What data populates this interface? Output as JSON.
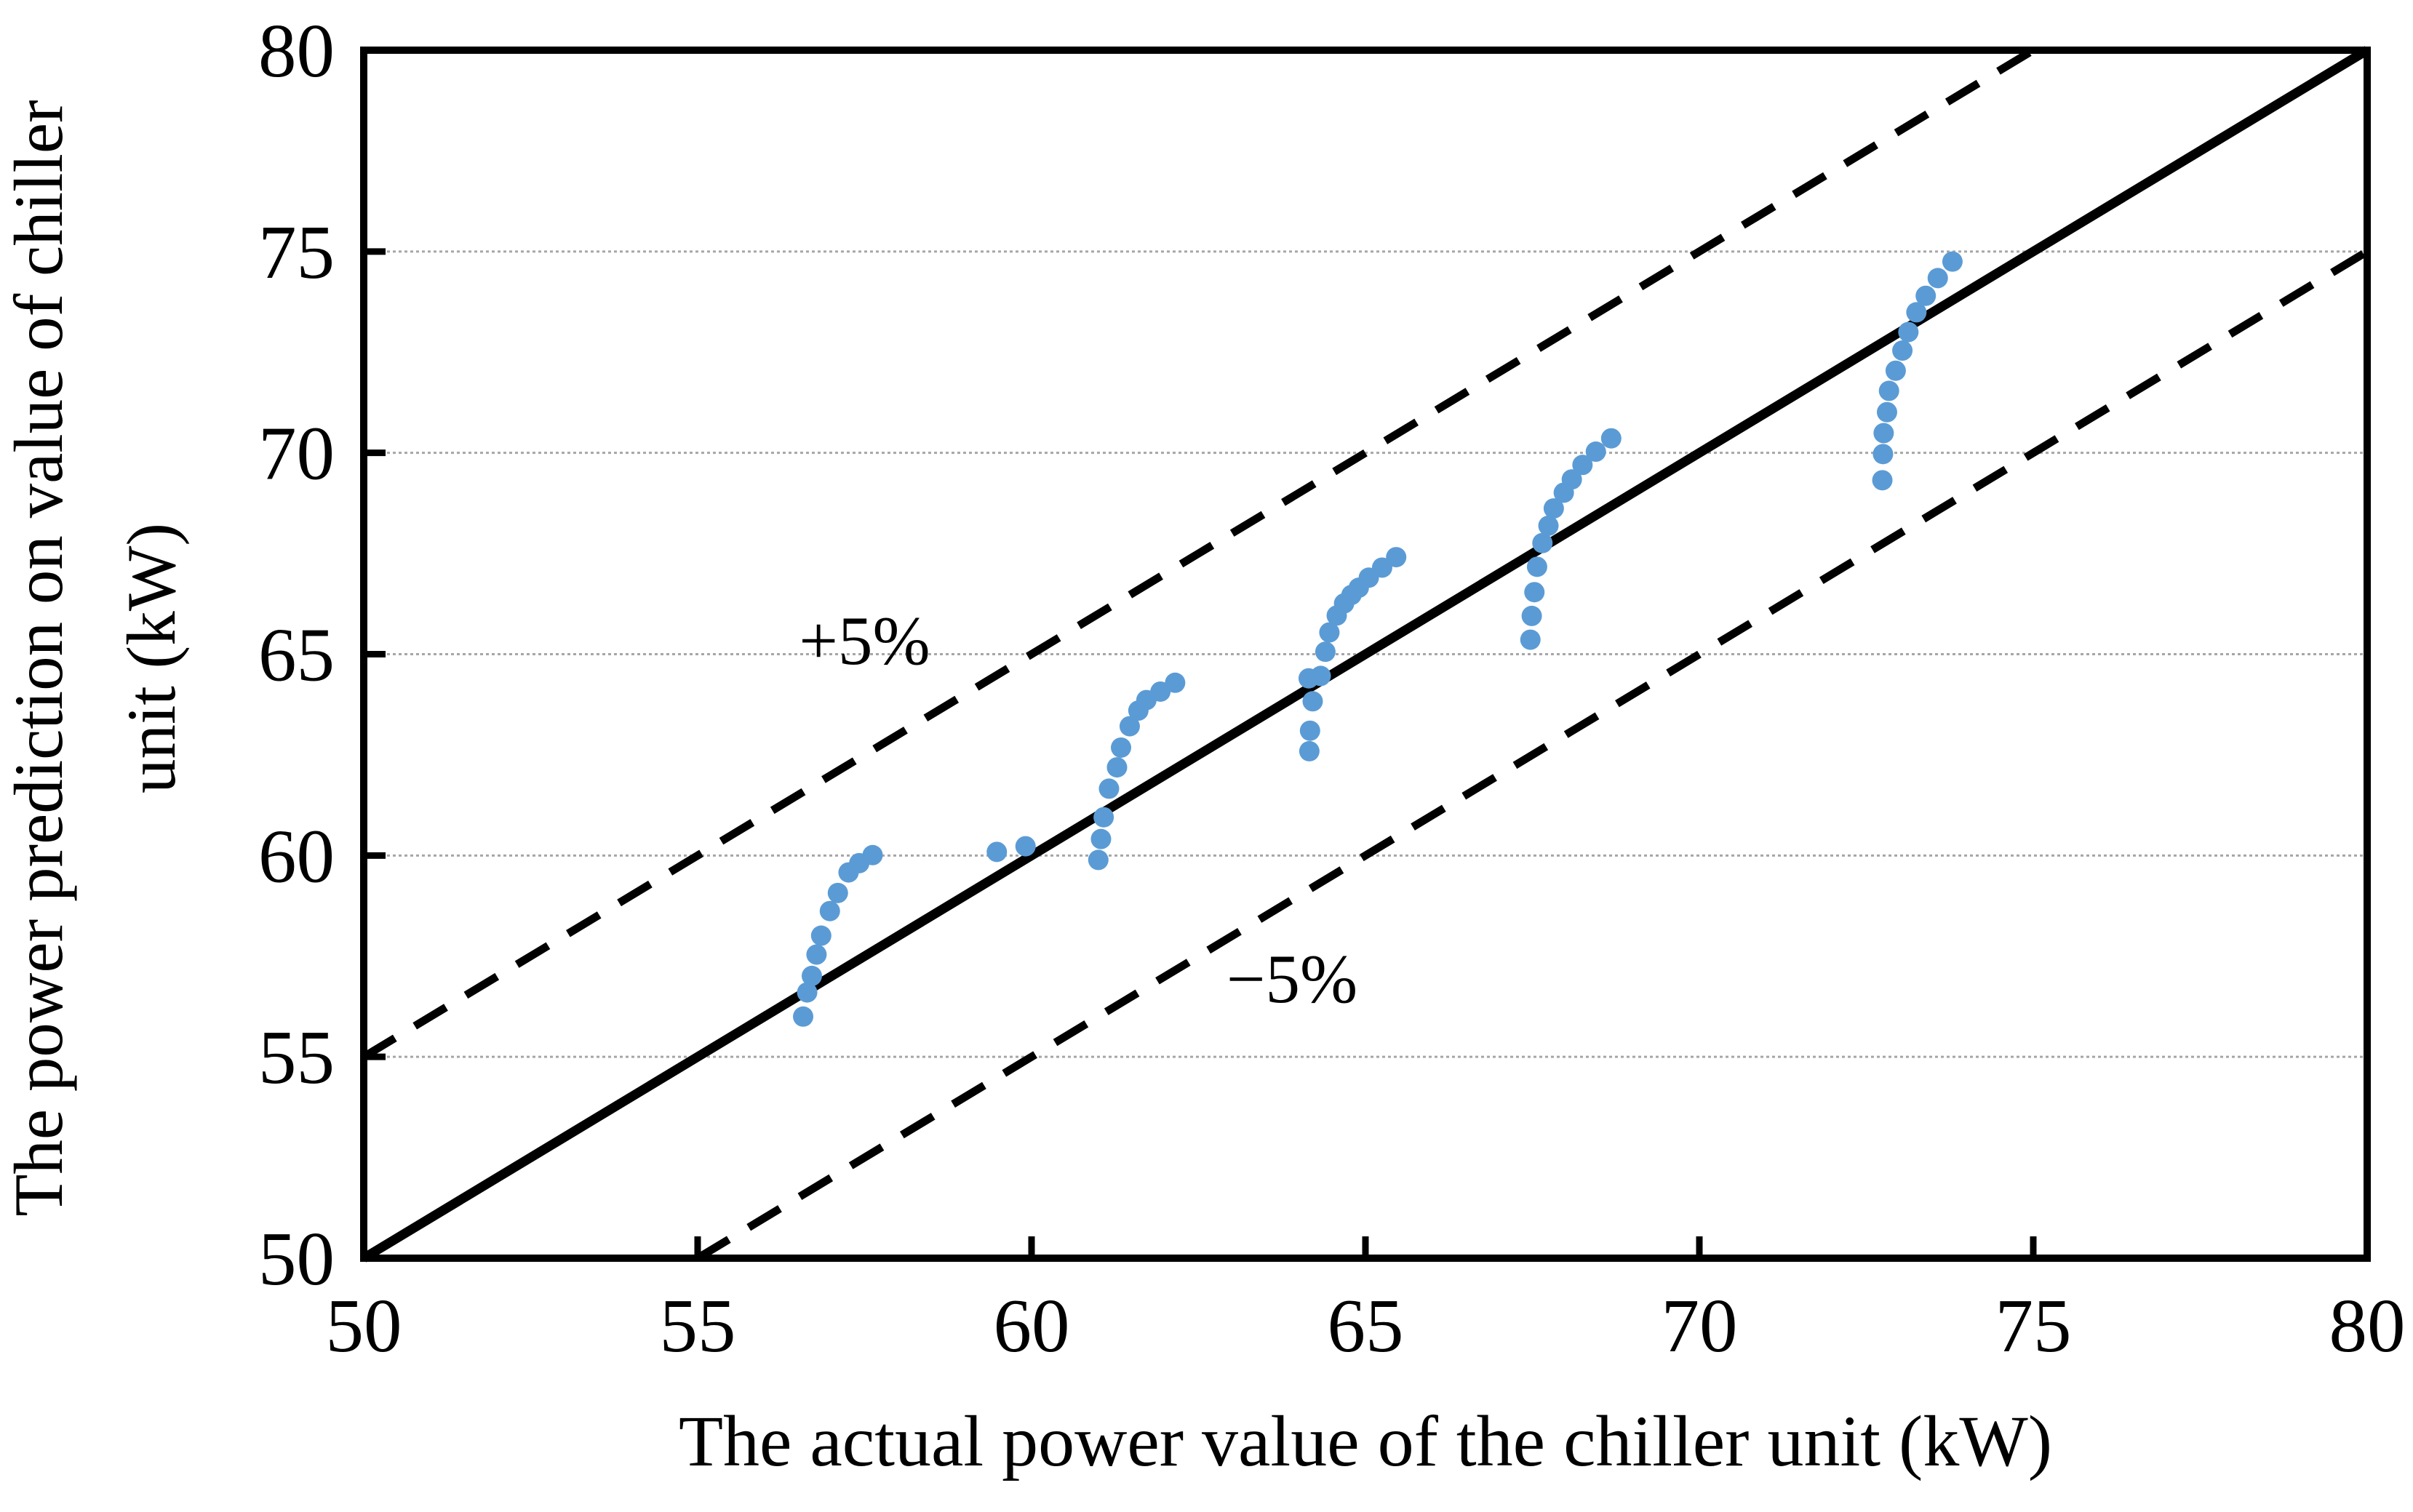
{
  "figure": {
    "background": "#ffffff"
  },
  "chart_data": {
    "type": "scatter",
    "title": "",
    "xlabel": "The actual power value of the chiller unit（kW）",
    "ylabel_lines": [
      "The power prediction on value of chiller",
      "unit（kW）"
    ],
    "xlim": [
      50,
      80
    ],
    "ylim": [
      50,
      80
    ],
    "xticks": [
      50,
      55,
      60,
      65,
      70,
      75,
      80
    ],
    "yticks": [
      50,
      55,
      60,
      65,
      70,
      75,
      80
    ],
    "gridlines": {
      "horizontal": [
        55,
        60,
        65,
        70,
        75
      ],
      "vertical": [],
      "color": "#a6a6a6"
    },
    "legend": "none",
    "marker": {
      "shape": "circle",
      "color": "#5B9BD5"
    },
    "reference_lines": [
      {
        "id": "identity",
        "label": "",
        "from": [
          50,
          50
        ],
        "to": [
          80,
          80
        ],
        "style": "solid",
        "color": "#000000"
      },
      {
        "id": "plus5",
        "label": "+5%",
        "from": [
          50,
          55
        ],
        "to": [
          75,
          80
        ],
        "style": "dashed",
        "color": "#000000",
        "label_at": [
          57.5,
          65.35
        ]
      },
      {
        "id": "minus5",
        "label": "−5%",
        "from": [
          55,
          50
        ],
        "to": [
          80,
          75
        ],
        "style": "dashed",
        "color": "#000000",
        "label_at": [
          63.9,
          56.95
        ]
      }
    ],
    "series": [
      {
        "name": "chiller-power-prediction-points",
        "color": "#5B9BD5",
        "points": [
          [
            56.58,
            56.0
          ],
          [
            56.64,
            56.6
          ],
          [
            56.71,
            57.01
          ],
          [
            56.78,
            57.54
          ],
          [
            56.85,
            58.01
          ],
          [
            56.98,
            58.62
          ],
          [
            57.1,
            59.07
          ],
          [
            57.26,
            59.58
          ],
          [
            57.42,
            59.81
          ],
          [
            57.62,
            60.01
          ],
          [
            59.48,
            60.09
          ],
          [
            59.91,
            60.23
          ],
          [
            61.0,
            59.89
          ],
          [
            61.04,
            60.41
          ],
          [
            61.08,
            60.95
          ],
          [
            61.16,
            61.66
          ],
          [
            61.28,
            62.19
          ],
          [
            61.34,
            62.68
          ],
          [
            61.47,
            63.21
          ],
          [
            61.6,
            63.6
          ],
          [
            61.72,
            63.86
          ],
          [
            61.93,
            64.07
          ],
          [
            62.15,
            64.29
          ],
          [
            64.16,
            62.59
          ],
          [
            64.17,
            63.1
          ],
          [
            64.21,
            63.83
          ],
          [
            64.15,
            64.4
          ],
          [
            64.33,
            64.46
          ],
          [
            64.4,
            65.06
          ],
          [
            64.46,
            65.54
          ],
          [
            64.57,
            65.96
          ],
          [
            64.68,
            66.26
          ],
          [
            64.79,
            66.47
          ],
          [
            64.9,
            66.65
          ],
          [
            65.05,
            66.9
          ],
          [
            65.25,
            67.15
          ],
          [
            65.46,
            67.41
          ],
          [
            67.47,
            65.36
          ],
          [
            67.49,
            65.95
          ],
          [
            67.53,
            66.54
          ],
          [
            67.57,
            67.17
          ],
          [
            67.65,
            67.76
          ],
          [
            67.74,
            68.19
          ],
          [
            67.82,
            68.62
          ],
          [
            67.97,
            69.01
          ],
          [
            68.09,
            69.34
          ],
          [
            68.25,
            69.7
          ],
          [
            68.45,
            70.03
          ],
          [
            68.68,
            70.36
          ],
          [
            72.74,
            69.32
          ],
          [
            72.75,
            69.97
          ],
          [
            72.76,
            70.49
          ],
          [
            72.81,
            71.01
          ],
          [
            72.84,
            71.54
          ],
          [
            72.94,
            72.04
          ],
          [
            73.04,
            72.54
          ],
          [
            73.13,
            73.0
          ],
          [
            73.25,
            73.49
          ],
          [
            73.39,
            73.9
          ],
          [
            73.57,
            74.34
          ],
          [
            73.79,
            74.75
          ]
        ]
      }
    ]
  }
}
